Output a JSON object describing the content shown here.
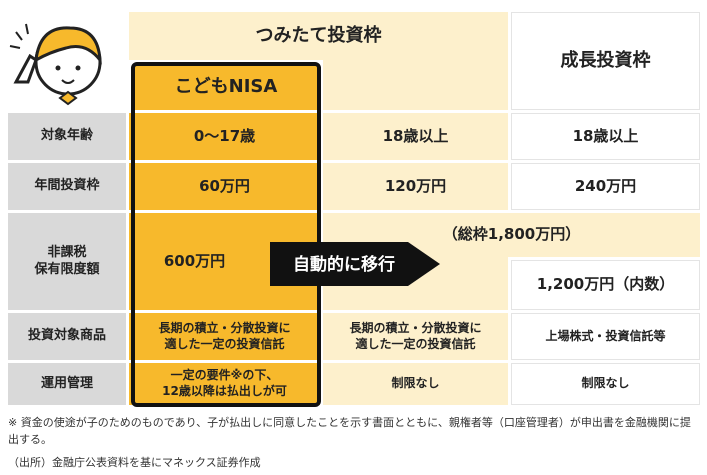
{
  "header": {
    "tsumitate": "つみたて投資枠",
    "kodomo": "こどもNISA",
    "seicho": "成長投資枠"
  },
  "rows": [
    {
      "label": "対象年齢",
      "kodomo": "0～17歳",
      "tsumitate": "18歳以上",
      "seicho": "18歳以上"
    },
    {
      "label": "年間投資枠",
      "kodomo": "60万円",
      "tsumitate": "120万円",
      "seicho": "240万円"
    },
    {
      "label": [
        "非課税",
        "保有限度額"
      ],
      "kodomo": "600万円",
      "total": "（総枠1,800万円）",
      "seicho": "1,200万円（内数）"
    },
    {
      "label": "投資対象商品",
      "kodomo": [
        "長期の積立・分散投資に",
        "適した一定の投資信託"
      ],
      "tsumitate": [
        "長期の積立・分散投資に",
        "適した一定の投資信託"
      ],
      "seicho": "上場株式・投資信託等"
    },
    {
      "label": "運用管理",
      "kodomo": [
        "一定の要件※の下、",
        "12歳以降は払出しが可"
      ],
      "tsumitate": "制限なし",
      "seicho": "制限なし"
    }
  ],
  "arrow": "自動的に移行",
  "notes": [
    "※ 資金の使途が子のためのものであり、子が払出しに同意したことを示す書面とともに、親権者等（口座管理者）が申出書を金融機関に提出する。",
    "（出所）金融庁公表資料を基にマネックス証券作成"
  ]
}
